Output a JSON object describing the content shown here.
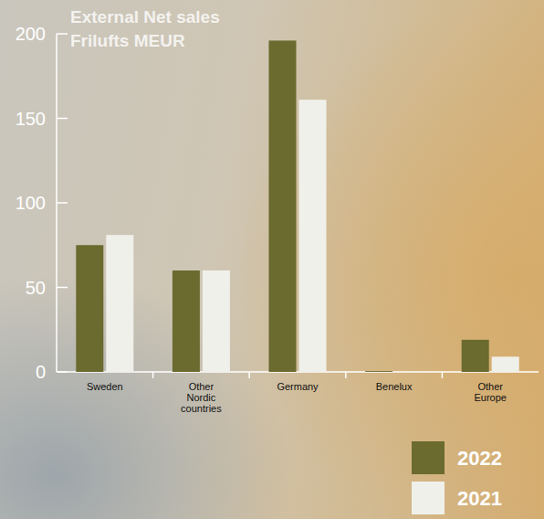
{
  "chart_data": {
    "type": "bar",
    "title": "External Net sales",
    "subtitle": "Frilufts MEUR",
    "categories": [
      "Sweden",
      "Other Nordic countries",
      "Germany",
      "Benelux",
      "Other Europe"
    ],
    "series": [
      {
        "name": "2022",
        "color": "#6b6a2f",
        "values": [
          75,
          60,
          196,
          0.5,
          19
        ]
      },
      {
        "name": "2021",
        "color": "#f0f0ea",
        "values": [
          81,
          60,
          161,
          0.2,
          9
        ]
      }
    ],
    "ylim": [
      0,
      200
    ],
    "yticks": [
      0,
      50,
      100,
      150,
      200
    ],
    "grid": false,
    "legend": "lower right"
  }
}
